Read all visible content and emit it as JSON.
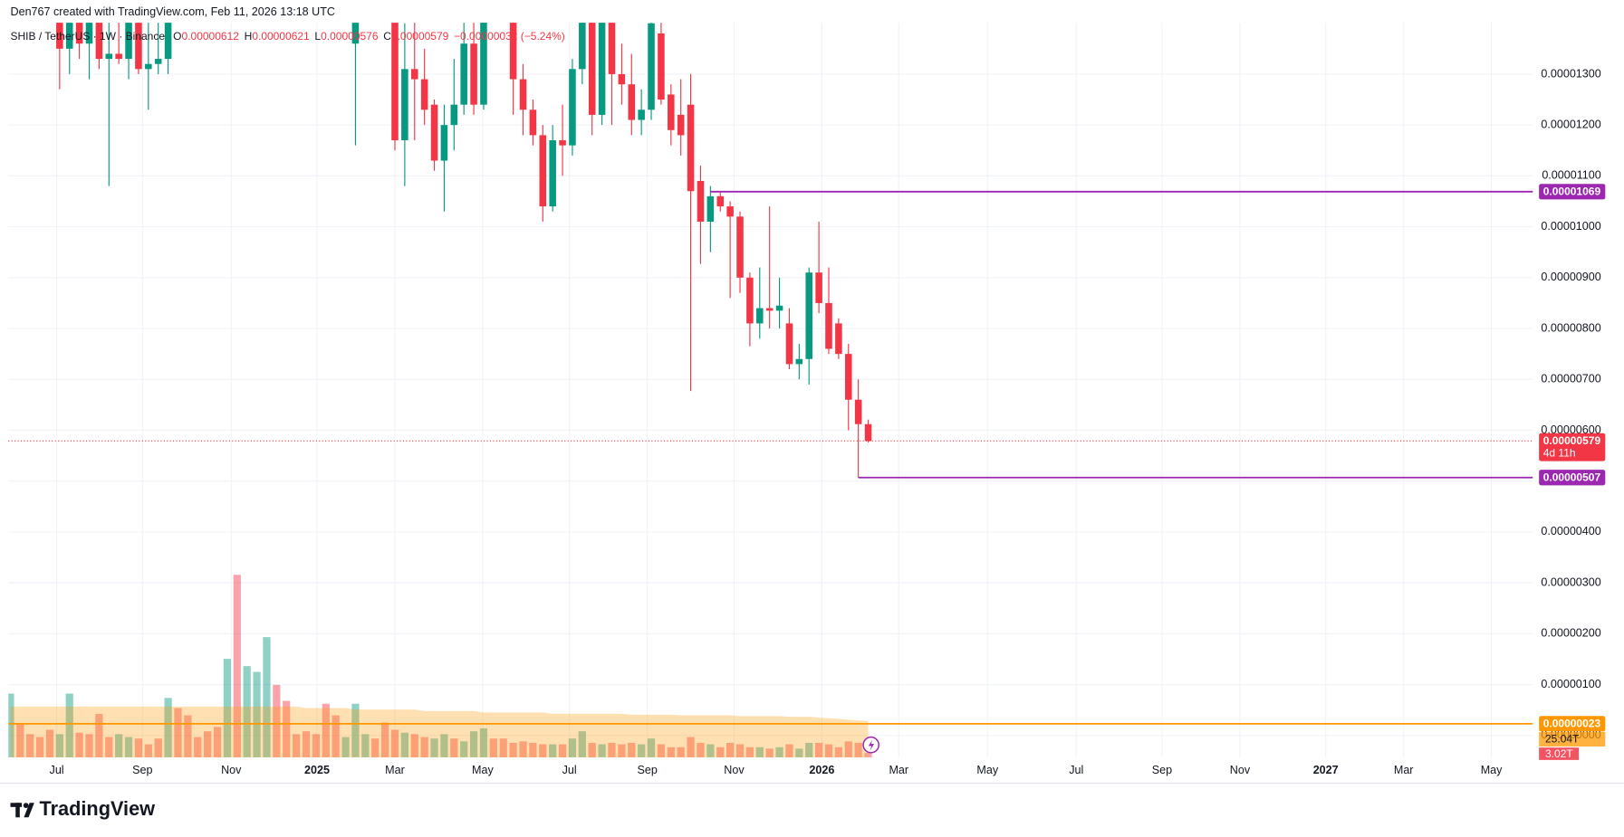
{
  "credit": "Den767 created with TradingView.com, Feb 11, 2026 13:18 UTC",
  "brand": "TradingView",
  "chart_data": {
    "type": "candlestick",
    "title": "SHIB / TetherUS · 1W · Binance",
    "legend_fields": [
      {
        "key": "O",
        "value": "0.00000612"
      },
      {
        "key": "H",
        "value": "0.00000621"
      },
      {
        "key": "L",
        "value": "0.00000576"
      },
      {
        "key": "C",
        "value": "0.00000579"
      }
    ],
    "legend_change": "−0.00000032 (−5.24%)",
    "up_color": "#089981",
    "down_color": "#f23645",
    "xlim": [
      -0.2,
      154.4
    ],
    "xticks": [
      {
        "value": 4.7,
        "label": "Jul"
      },
      {
        "value": 13.4,
        "label": "Sep"
      },
      {
        "value": 22.4,
        "label": "Nov"
      },
      {
        "value": 31.1,
        "label": "2025",
        "bold": true
      },
      {
        "value": 39.0,
        "label": "Mar"
      },
      {
        "value": 47.9,
        "label": "May"
      },
      {
        "value": 56.7,
        "label": "Jul"
      },
      {
        "value": 64.6,
        "label": "Sep"
      },
      {
        "value": 73.4,
        "label": "Nov"
      },
      {
        "value": 82.3,
        "label": "2026",
        "bold": true
      },
      {
        "value": 90.1,
        "label": "Mar"
      },
      {
        "value": 99.1,
        "label": "May"
      },
      {
        "value": 108.1,
        "label": "Jul"
      },
      {
        "value": 116.8,
        "label": "Sep"
      },
      {
        "value": 124.7,
        "label": "Nov"
      },
      {
        "value": 133.4,
        "label": "2027",
        "bold": true
      },
      {
        "value": 141.3,
        "label": "Mar"
      },
      {
        "value": 150.2,
        "label": "May"
      }
    ],
    "ylim": [
      -4.3e-07,
      1.401e-05
    ],
    "yticks": [
      {
        "value": 0,
        "label": "0.00000000"
      },
      {
        "value": 1e-06,
        "label": "0.00000100"
      },
      {
        "value": 2e-06,
        "label": "0.00000200"
      },
      {
        "value": 3e-06,
        "label": "0.00000300"
      },
      {
        "value": 4e-06,
        "label": "0.00000400"
      },
      {
        "value": 5e-06,
        "label": "0.00000500"
      },
      {
        "value": 6e-06,
        "label": "0.00000600"
      },
      {
        "value": 7e-06,
        "label": "0.00000700"
      },
      {
        "value": 8e-06,
        "label": "0.00000800"
      },
      {
        "value": 9e-06,
        "label": "0.00000900"
      },
      {
        "value": 1e-05,
        "label": "0.00001000"
      },
      {
        "value": 1.1e-05,
        "label": "0.00001100"
      },
      {
        "value": 1.2e-05,
        "label": "0.00001200"
      },
      {
        "value": 1.3e-05,
        "label": "0.00001300"
      }
    ],
    "grid": true,
    "ohlc": [
      null,
      null,
      null,
      null,
      null,
      [
        1.43e-05,
        1.49e-05,
        1.27e-05,
        1.35e-05
      ],
      [
        1.35e-05,
        1.44e-05,
        1.3e-05,
        1.42e-05
      ],
      [
        1.42e-05,
        1.46e-05,
        1.33e-05,
        1.36e-05
      ],
      [
        1.36e-05,
        1.45e-05,
        1.29e-05,
        1.43e-05
      ],
      [
        1.43e-05,
        1.46e-05,
        1.31e-05,
        1.33e-05
      ],
      [
        1.33e-05,
        1.45e-05,
        1.08e-05,
        1.34e-05
      ],
      [
        1.34e-05,
        1.41e-05,
        1.32e-05,
        1.33e-05
      ],
      [
        1.33e-05,
        1.45e-05,
        1.29e-05,
        1.44e-05
      ],
      [
        1.44e-05,
        1.48e-05,
        1.3e-05,
        1.31e-05
      ],
      [
        1.31e-05,
        1.42e-05,
        1.23e-05,
        1.32e-05
      ],
      [
        1.32e-05,
        1.45e-05,
        1.3e-05,
        1.33e-05
      ],
      [
        1.33e-05,
        1.49e-05,
        1.3e-05,
        1.46e-05
      ],
      null,
      null,
      null,
      null,
      null,
      null,
      null,
      null,
      null,
      null,
      null,
      null,
      null,
      null,
      null,
      null,
      null,
      null,
      [
        1.36e-05,
        1.46e-05,
        1.16e-05,
        1.42e-05
      ],
      null,
      null,
      null,
      [
        1.43e-05,
        1.48e-05,
        1.15e-05,
        1.17e-05
      ],
      [
        1.17e-05,
        1.4e-05,
        1.08e-05,
        1.31e-05
      ],
      [
        1.31e-05,
        1.41e-05,
        1.17e-05,
        1.29e-05
      ],
      [
        1.29e-05,
        1.35e-05,
        1.2e-05,
        1.23e-05
      ],
      [
        1.24e-05,
        1.25e-05,
        1.11e-05,
        1.13e-05
      ],
      [
        1.13e-05,
        1.24e-05,
        1.03e-05,
        1.2e-05
      ],
      [
        1.2e-05,
        1.33e-05,
        1.15e-05,
        1.24e-05
      ],
      [
        1.24e-05,
        1.42e-05,
        1.22e-05,
        1.36e-05
      ],
      [
        1.36e-05,
        1.43e-05,
        1.22e-05,
        1.24e-05
      ],
      [
        1.24e-05,
        1.43e-05,
        1.23e-05,
        1.42e-05
      ],
      null,
      null,
      [
        1.45e-05,
        1.48e-05,
        1.22e-05,
        1.29e-05
      ],
      [
        1.29e-05,
        1.32e-05,
        1.18e-05,
        1.23e-05
      ],
      [
        1.23e-05,
        1.25e-05,
        1.16e-05,
        1.18e-05
      ],
      [
        1.18e-05,
        1.2e-05,
        1.01e-05,
        1.04e-05
      ],
      [
        1.04e-05,
        1.2e-05,
        1.03e-05,
        1.17e-05
      ],
      [
        1.17e-05,
        1.24e-05,
        1.1e-05,
        1.16e-05
      ],
      [
        1.16e-05,
        1.33e-05,
        1.14e-05,
        1.31e-05
      ],
      [
        1.31e-05,
        1.48e-05,
        1.28e-05,
        1.46e-05
      ],
      [
        1.45e-05,
        1.49e-05,
        1.18e-05,
        1.22e-05
      ],
      [
        1.22e-05,
        1.46e-05,
        1.2e-05,
        1.43e-05
      ],
      [
        1.43e-05,
        1.45e-05,
        1.2e-05,
        1.3e-05
      ],
      [
        1.3e-05,
        1.36e-05,
        1.24e-05,
        1.28e-05
      ],
      [
        1.28e-05,
        1.34e-05,
        1.18e-05,
        1.21e-05
      ],
      [
        1.21e-05,
        1.27e-05,
        1.18e-05,
        1.23e-05
      ],
      [
        1.23e-05,
        1.43e-05,
        1.21e-05,
        1.4e-05
      ],
      [
        1.38e-05,
        1.41e-05,
        1.24e-05,
        1.25e-05
      ],
      [
        1.26e-05,
        1.28e-05,
        1.16e-05,
        1.19e-05
      ],
      [
        1.22e-05,
        1.29e-05,
        1.14e-05,
        1.18e-05
      ],
      [
        1.24e-05,
        1.3e-05,
        6.77e-06,
        1.07e-05
      ],
      [
        1.09e-05,
        1.12e-05,
        9.27e-06,
        1.01e-05
      ],
      [
        1.01e-05,
        1.08e-05,
        9.5e-06,
        1.06e-05
      ],
      [
        1.06e-05,
        1.07e-05,
        1.03e-05,
        1.04e-05
      ],
      [
        1.04e-05,
        1.05e-05,
        8.6e-06,
        1.02e-05
      ],
      [
        1.02e-05,
        1.03e-05,
        8.7e-06,
        9e-06
      ],
      [
        9e-06,
        9.1e-06,
        7.65e-06,
        8.1e-06
      ],
      [
        8.1e-06,
        9.2e-06,
        7.8e-06,
        8.4e-06
      ],
      [
        8.4e-06,
        1.04e-05,
        8e-06,
        8.35e-06
      ],
      [
        8.35e-06,
        9e-06,
        8e-06,
        8.45e-06
      ],
      [
        8.1e-06,
        8.4e-06,
        7.2e-06,
        7.3e-06
      ],
      [
        7.3e-06,
        7.7e-06,
        7e-06,
        7.4e-06
      ],
      [
        7.4e-06,
        9.2e-06,
        6.9e-06,
        9.1e-06
      ],
      [
        9.1e-06,
        1.01e-05,
        8.3e-06,
        8.5e-06
      ],
      [
        8.5e-06,
        9.2e-06,
        7.5e-06,
        7.6e-06
      ],
      [
        8.1e-06,
        8.2e-06,
        7.4e-06,
        7.5e-06
      ],
      [
        7.5e-06,
        7.7e-06,
        6e-06,
        6.6e-06
      ],
      [
        6.6e-06,
        7e-06,
        5.07e-06,
        6.12e-06
      ],
      [
        6.12e-06,
        6.21e-06,
        5.76e-06,
        5.79e-06
      ]
    ],
    "volume": {
      "values": [
        44,
        23,
        16,
        14,
        19,
        16,
        44,
        17,
        16,
        30,
        14,
        16,
        14,
        13,
        9,
        13,
        41,
        34,
        29,
        14,
        18,
        21,
        68,
        126,
        63,
        59,
        83,
        50,
        39,
        16,
        18,
        16,
        37,
        29,
        14,
        37,
        16,
        13,
        24,
        19,
        17,
        16,
        14,
        13,
        16,
        13,
        11,
        18,
        20,
        13,
        13,
        10,
        11,
        10,
        9,
        9,
        9,
        13,
        18,
        10,
        9,
        10,
        9,
        10,
        9,
        13,
        9,
        7,
        7,
        14,
        10,
        9,
        7,
        10,
        9,
        7,
        7,
        6,
        7,
        9,
        6,
        10,
        10,
        9,
        7,
        11,
        10,
        3.02
      ],
      "colors": [
        "#089981",
        "#f23645",
        "#f23645",
        "#f23645",
        "#f23645",
        "#089981",
        "#089981",
        "#f23645",
        "#f23645",
        "#f23645",
        "#f23645",
        "#089981",
        "#089981",
        "#f23645",
        "#f23645",
        "#f23645",
        "#089981",
        "#f23645",
        "#f23645",
        "#f23645",
        "#f23645",
        "#f23645",
        "#089981",
        "#f23645",
        "#089981",
        "#089981",
        "#089981",
        "#f23645",
        "#f23645",
        "#f23645",
        "#f23645",
        "#f23645",
        "#f23645",
        "#f23645",
        "#089981",
        "#089981",
        "#089981",
        "#f23645",
        "#f23645",
        "#f23645",
        "#089981",
        "#f23645",
        "#f23645",
        "#089981",
        "#089981",
        "#f23645",
        "#089981",
        "#089981",
        "#089981",
        "#f23645",
        "#f23645",
        "#f23645",
        "#f23645",
        "#f23645",
        "#f23645",
        "#089981",
        "#f23645",
        "#089981",
        "#089981",
        "#f23645",
        "#089981",
        "#f23645",
        "#f23645",
        "#f23645",
        "#089981",
        "#089981",
        "#f23645",
        "#f23645",
        "#f23645",
        "#f23645",
        "#f23645",
        "#089981",
        "#f23645",
        "#f23645",
        "#f23645",
        "#f23645",
        "#089981",
        "#f23645",
        "#089981",
        "#f23645",
        "#089981",
        "#089981",
        "#f23645",
        "#f23645",
        "#f23645",
        "#f23645",
        "#f23645",
        "#f23645"
      ],
      "last_label": "3.02T"
    },
    "volume_ma": {
      "values": [
        35,
        35,
        35,
        35,
        35,
        35,
        35,
        35,
        35,
        35,
        35,
        35,
        35,
        35,
        35,
        35,
        35,
        35,
        35,
        35,
        35,
        35,
        35,
        35,
        35,
        35,
        35,
        35,
        35,
        35,
        34,
        34,
        34,
        34,
        34,
        33,
        33,
        33,
        33,
        33,
        33,
        33,
        32,
        32,
        32,
        32,
        32,
        32,
        31,
        31,
        31,
        31,
        31,
        31,
        31,
        30,
        30,
        30,
        30,
        30,
        30,
        30,
        30,
        29.5,
        29.5,
        29.5,
        29.5,
        29.5,
        29,
        29,
        29,
        29,
        29,
        29,
        28.5,
        28.5,
        28.5,
        28.5,
        28.5,
        28,
        28,
        28,
        27.5,
        27,
        26.5,
        26,
        25.5,
        25.04
      ],
      "color": "#ff9800",
      "last_label": "25.04T"
    },
    "levels": [
      {
        "value": 1.069e-05,
        "label": "0.00001069",
        "color": "#9c27b0",
        "from": 71
      },
      {
        "value": 5.07e-06,
        "label": "0.00000507",
        "color": "#9c27b0",
        "from": 86
      },
      {
        "value": 2.3e-07,
        "label": "0.00000023",
        "color": "#ff9800"
      }
    ],
    "last_price_label": "0.00000579",
    "countdown": "4d 11h"
  }
}
